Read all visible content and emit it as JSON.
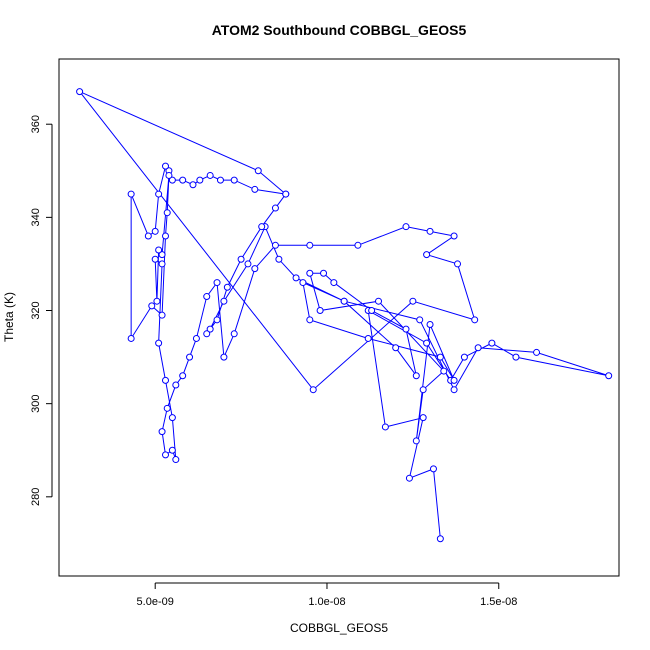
{
  "chart_data": {
    "type": "line",
    "title": "ATOM2 Southbound COBBGL_GEOS5",
    "xlabel": "COBBGL_GEOS5",
    "ylabel": "Theta (K)",
    "xlim": [
      2.2e-09,
      1.85e-08
    ],
    "ylim": [
      263,
      374
    ],
    "x_ticks": [
      {
        "value": 5e-09,
        "label": "5.0e-09"
      },
      {
        "value": 1e-08,
        "label": "1.0e-08"
      },
      {
        "value": 1.5e-08,
        "label": "1.5e-08"
      }
    ],
    "y_ticks": [
      {
        "value": 280,
        "label": "280"
      },
      {
        "value": 300,
        "label": "300"
      },
      {
        "value": 320,
        "label": "320"
      },
      {
        "value": 340,
        "label": "340"
      },
      {
        "value": 360,
        "label": "360"
      }
    ],
    "grid": false,
    "series": [
      {
        "color": "#0000ff",
        "marker": "open-circle",
        "x": [
          1.33e-08,
          1.31e-08,
          1.24e-08,
          1.28e-08,
          1.17e-08,
          1.12e-08,
          1.29e-08,
          1.36e-08,
          1.4e-08,
          1.48e-08,
          1.55e-08,
          1.82e-08,
          1.61e-08,
          1.44e-08,
          1.37e-08,
          1.27e-08,
          1.05e-08,
          9.3e-09,
          9.5e-09,
          1.12e-08,
          1.33e-08,
          1.37e-08,
          1.3e-08,
          1.26e-08,
          1.28e-08,
          1.34e-08,
          1.15e-08,
          9.8e-09,
          9.5e-09,
          9.9e-09,
          1.02e-08,
          1.13e-08,
          1.23e-08,
          1.26e-08,
          1.2e-08,
          1.05e-08,
          9.1e-09,
          8.6e-09,
          8.2e-09,
          7.7e-09,
          7e-09,
          6.6e-09,
          6.5e-09,
          6.8e-09,
          7.1e-09,
          7.5e-09,
          8.1e-09,
          8.5e-09,
          8.8e-09,
          7.9e-09,
          7.3e-09,
          6.9e-09,
          6.6e-09,
          6.3e-09,
          6.1e-09,
          5.8e-09,
          5.5e-09,
          5.4e-09,
          5.3e-09,
          5.1e-09,
          5e-09,
          4.8e-09,
          4.3e-09,
          4.3e-09,
          4.9e-09,
          5.2e-09,
          5.3e-09,
          5.35e-09,
          5.4e-09,
          5.2e-09,
          5.1e-09,
          5.05e-09,
          5e-09,
          5.2e-09,
          5.1e-09,
          5.3e-09,
          5.5e-09,
          5.6e-09,
          5.5e-09,
          5.3e-09,
          5.2e-09,
          5.35e-09,
          5.6e-09,
          5.8e-09,
          6e-09,
          6.2e-09,
          6.5e-09,
          6.8e-09,
          7e-09,
          7.3e-09,
          7.9e-09,
          8.5e-09,
          9.5e-09,
          1.09e-08,
          1.23e-08,
          1.3e-08,
          1.37e-08,
          1.29e-08,
          1.38e-08,
          1.43e-08,
          1.25e-08,
          9.6e-09,
          2.8e-09,
          8e-09,
          8.8e-09
        ],
        "y": [
          271,
          286,
          284,
          297,
          295,
          320,
          313,
          305,
          310,
          313,
          310,
          306,
          311,
          312,
          303,
          318,
          322,
          326,
          318,
          314,
          310,
          305,
          317,
          292,
          303,
          307,
          322,
          320,
          328,
          328,
          326,
          320,
          316,
          306,
          312,
          322,
          327,
          331,
          338,
          330,
          322,
          316,
          315,
          318,
          325,
          331,
          338,
          342,
          345,
          346,
          348,
          348,
          349,
          348,
          347,
          348,
          348,
          350,
          351,
          345,
          337,
          336,
          345,
          314,
          321,
          319,
          336,
          341,
          349,
          332,
          333,
          322,
          331,
          330,
          313,
          305,
          297,
          288,
          290,
          289,
          294,
          299,
          304,
          306,
          310,
          314,
          323,
          326,
          310,
          315,
          329,
          334,
          334,
          334,
          338,
          337,
          336,
          332,
          330,
          318,
          322,
          303,
          367,
          350,
          345
        ]
      }
    ]
  }
}
